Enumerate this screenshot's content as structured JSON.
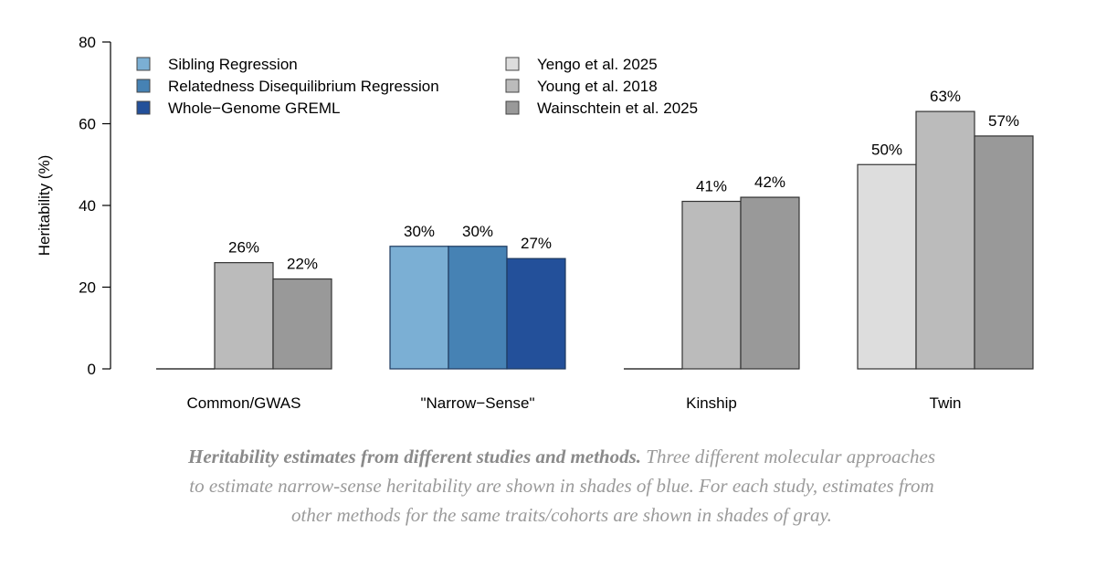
{
  "chart_data": {
    "type": "bar",
    "title": "",
    "xlabel": "",
    "ylabel": "Heritability (%)",
    "ylim": [
      0,
      80
    ],
    "yticks": [
      0,
      20,
      40,
      60,
      80
    ],
    "grid": false,
    "legend_position": "top-left",
    "legend": [
      {
        "name": "Sibling Regression",
        "color": "#7BAFD4"
      },
      {
        "name": "Relatedness Disequilibrium Regression",
        "color": "#4682B4"
      },
      {
        "name": "Whole−Genome GREML",
        "color": "#23509A"
      },
      {
        "name": "Yengo et al. 2025",
        "color": "#DDDDDD"
      },
      {
        "name": "Young et al. 2018",
        "color": "#BBBBBB"
      },
      {
        "name": "Wainschtein et al. 2025",
        "color": "#999999"
      }
    ],
    "groups": [
      {
        "category": "Common/GWAS",
        "bars": [
          {
            "series": "Yengo et al. 2025",
            "value": 0,
            "label": ""
          },
          {
            "series": "Young et al. 2018",
            "value": 26,
            "label": "26%"
          },
          {
            "series": "Wainschtein et al. 2025",
            "value": 22,
            "label": "22%"
          }
        ]
      },
      {
        "category": "\"Narrow−Sense\"",
        "bars": [
          {
            "series": "Sibling Regression",
            "value": 30,
            "label": "30%"
          },
          {
            "series": "Relatedness Disequilibrium Regression",
            "value": 30,
            "label": "30%"
          },
          {
            "series": "Whole−Genome GREML",
            "value": 27,
            "label": "27%"
          }
        ]
      },
      {
        "category": "Kinship",
        "bars": [
          {
            "series": "Yengo et al. 2025",
            "value": 0,
            "label": ""
          },
          {
            "series": "Young et al. 2018",
            "value": 41,
            "label": "41%"
          },
          {
            "series": "Wainschtein et al. 2025",
            "value": 42,
            "label": "42%"
          }
        ]
      },
      {
        "category": "Twin",
        "bars": [
          {
            "series": "Yengo et al. 2025",
            "value": 50,
            "label": "50%"
          },
          {
            "series": "Young et al. 2018",
            "value": 63,
            "label": "63%"
          },
          {
            "series": "Wainschtein et al. 2025",
            "value": 57,
            "label": "57%"
          }
        ]
      }
    ]
  },
  "caption": {
    "bold": "Heritability estimates from different studies and methods.",
    "text": " Three different molecular approaches to estimate narrow-sense heritability are shown in shades of blue. For each study, estimates from other methods for the same traits/cohorts are shown in shades of gray."
  }
}
